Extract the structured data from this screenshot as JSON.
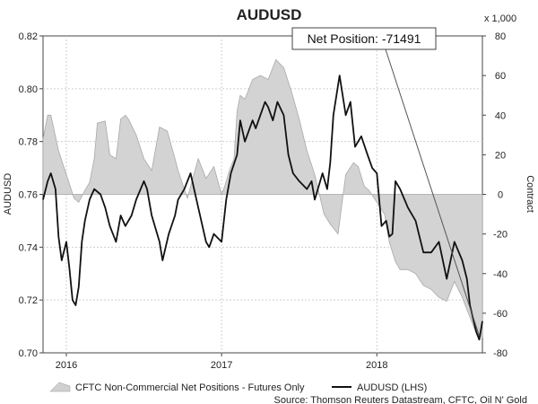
{
  "chart_data": {
    "type": "area",
    "title": "AUDUSD",
    "ylabel": "AUDUSD",
    "y2label": "Contract",
    "y2_unit_note": "x 1,000",
    "ylim": [
      0.7,
      0.82
    ],
    "y2lim": [
      -80,
      80
    ],
    "y_ticks": [
      "0.82",
      "0.80",
      "0.78",
      "0.76",
      "0.74",
      "0.72",
      "0.70"
    ],
    "y2_ticks": [
      "80",
      "60",
      "40",
      "20",
      "0",
      "-20",
      "-40",
      "-60",
      "-80"
    ],
    "xlim": [
      2015.85,
      2018.68
    ],
    "x_ticks": [
      {
        "label": "2016",
        "value": 2016.0
      },
      {
        "label": "2017",
        "value": 2017.0
      },
      {
        "label": "2018",
        "value": 2018.0
      }
    ],
    "callout": {
      "text": "Net Position: -71491",
      "x": 2018.66,
      "value": -71.5
    },
    "legend": [
      "CFTC Non-Commercial Net Positions - Futures Only",
      "AUDUSD (LHS)"
    ],
    "source": "Source: Thomson Reuters Datastream, CFTC, Oil N' Gold",
    "series": [
      {
        "name": "CFTC Non-Commercial Net Positions - Futures Only",
        "axis": "right",
        "x": [
          2015.85,
          2015.88,
          2015.9,
          2015.95,
          2016.0,
          2016.05,
          2016.08,
          2016.12,
          2016.15,
          2016.18,
          2016.2,
          2016.25,
          2016.28,
          2016.32,
          2016.35,
          2016.38,
          2016.4,
          2016.45,
          2016.5,
          2016.55,
          2016.6,
          2016.65,
          2016.7,
          2016.72,
          2016.75,
          2016.78,
          2016.8,
          2016.85,
          2016.9,
          2016.95,
          2017.0,
          2017.02,
          2017.05,
          2017.08,
          2017.1,
          2017.12,
          2017.15,
          2017.2,
          2017.25,
          2017.3,
          2017.35,
          2017.4,
          2017.45,
          2017.5,
          2017.55,
          2017.6,
          2017.63,
          2017.66,
          2017.7,
          2017.75,
          2017.8,
          2017.85,
          2017.88,
          2017.92,
          2017.95,
          2018.0,
          2018.05,
          2018.08,
          2018.12,
          2018.15,
          2018.2,
          2018.25,
          2018.3,
          2018.35,
          2018.4,
          2018.45,
          2018.5,
          2018.55,
          2018.6,
          2018.64,
          2018.68
        ],
        "values": [
          28,
          40,
          40,
          22,
          10,
          -2,
          -4,
          2,
          6,
          18,
          36,
          37,
          20,
          18,
          38,
          40,
          38,
          30,
          18,
          12,
          34,
          32,
          18,
          12,
          5,
          -2,
          4,
          18,
          8,
          14,
          0,
          4,
          12,
          18,
          42,
          50,
          48,
          58,
          60,
          58,
          68,
          64,
          52,
          38,
          22,
          10,
          0,
          -10,
          -15,
          -20,
          10,
          16,
          14,
          4,
          2,
          -4,
          -10,
          -24,
          -34,
          -38,
          -38,
          -40,
          -46,
          -48,
          -52,
          -54,
          -44,
          -52,
          -62,
          -70,
          -72
        ]
      },
      {
        "name": "AUDUSD (LHS)",
        "axis": "left",
        "x": [
          2015.85,
          2015.88,
          2015.9,
          2015.93,
          2015.95,
          2015.97,
          2016.0,
          2016.02,
          2016.04,
          2016.06,
          2016.08,
          2016.1,
          2016.12,
          2016.15,
          2016.18,
          2016.22,
          2016.25,
          2016.28,
          2016.32,
          2016.35,
          2016.38,
          2016.42,
          2016.45,
          2016.5,
          2016.52,
          2016.55,
          2016.6,
          2016.62,
          2016.66,
          2016.7,
          2016.72,
          2016.76,
          2016.8,
          2016.85,
          2016.9,
          2016.92,
          2016.95,
          2017.0,
          2017.03,
          2017.06,
          2017.1,
          2017.12,
          2017.15,
          2017.2,
          2017.22,
          2017.25,
          2017.28,
          2017.3,
          2017.33,
          2017.36,
          2017.4,
          2017.43,
          2017.46,
          2017.5,
          2017.55,
          2017.58,
          2017.6,
          2017.62,
          2017.65,
          2017.68,
          2017.7,
          2017.72,
          2017.76,
          2017.8,
          2017.83,
          2017.86,
          2017.9,
          2017.94,
          2017.97,
          2018.0,
          2018.03,
          2018.06,
          2018.08,
          2018.1,
          2018.12,
          2018.15,
          2018.2,
          2018.25,
          2018.3,
          2018.35,
          2018.4,
          2018.45,
          2018.5,
          2018.55,
          2018.58,
          2018.6,
          2018.62,
          2018.64,
          2018.66,
          2018.68
        ],
        "values": [
          0.758,
          0.765,
          0.768,
          0.762,
          0.744,
          0.735,
          0.742,
          0.732,
          0.72,
          0.718,
          0.725,
          0.742,
          0.75,
          0.758,
          0.762,
          0.76,
          0.755,
          0.748,
          0.742,
          0.752,
          0.748,
          0.752,
          0.758,
          0.765,
          0.762,
          0.752,
          0.742,
          0.735,
          0.745,
          0.752,
          0.758,
          0.762,
          0.768,
          0.755,
          0.742,
          0.74,
          0.745,
          0.742,
          0.758,
          0.768,
          0.775,
          0.788,
          0.78,
          0.788,
          0.785,
          0.79,
          0.795,
          0.793,
          0.788,
          0.795,
          0.79,
          0.775,
          0.768,
          0.765,
          0.762,
          0.765,
          0.758,
          0.762,
          0.768,
          0.762,
          0.772,
          0.79,
          0.805,
          0.79,
          0.795,
          0.778,
          0.782,
          0.775,
          0.77,
          0.768,
          0.748,
          0.75,
          0.744,
          0.745,
          0.765,
          0.762,
          0.755,
          0.75,
          0.738,
          0.738,
          0.742,
          0.728,
          0.742,
          0.735,
          0.728,
          0.718,
          0.713,
          0.708,
          0.705,
          0.712
        ]
      }
    ]
  }
}
